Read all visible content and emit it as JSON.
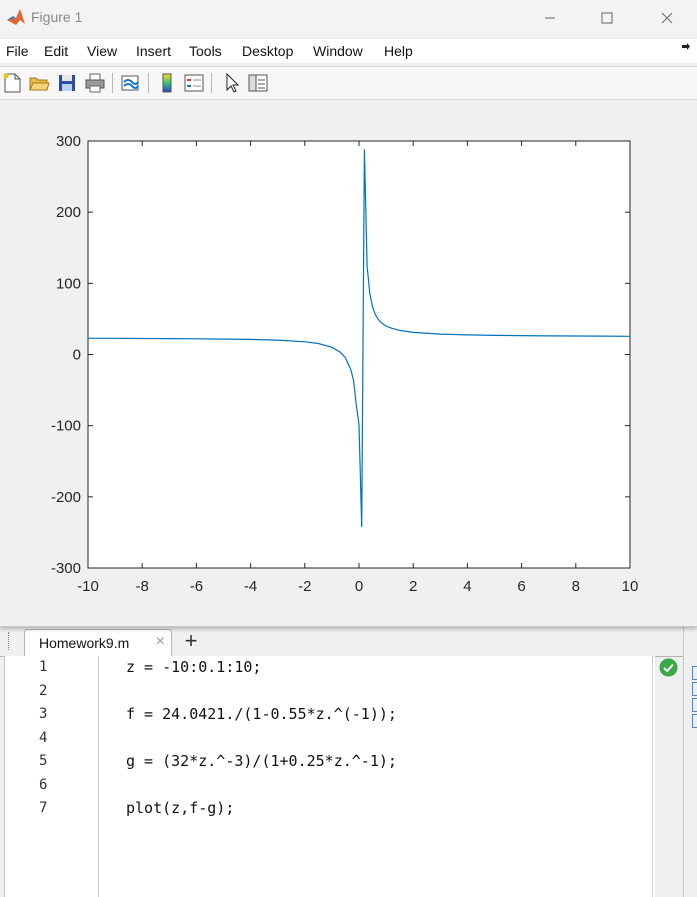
{
  "window": {
    "title": "Figure 1",
    "controls": [
      "minimize-icon",
      "maximize-icon",
      "close-icon"
    ]
  },
  "menubar": {
    "items": [
      "File",
      "Edit",
      "View",
      "Insert",
      "Tools",
      "Desktop",
      "Window",
      "Help"
    ]
  },
  "toolbar": {
    "icons": [
      "new-figure-icon",
      "open-folder-icon",
      "save-icon",
      "print-icon",
      "link-plot-icon",
      "colorbar-icon",
      "legend-icon",
      "edit-plot-arrow-icon",
      "property-inspector-icon"
    ]
  },
  "colors": {
    "line": "#0072bd",
    "accent": "#1a75c8",
    "ok": "#3aa845"
  },
  "chart_data": {
    "type": "line",
    "title": "",
    "xlabel": "",
    "ylabel": "",
    "xlim": [
      -10,
      10
    ],
    "ylim": [
      -300,
      300
    ],
    "xticks": [
      -10,
      -8,
      -6,
      -4,
      -2,
      0,
      2,
      4,
      6,
      8,
      10
    ],
    "yticks": [
      -300,
      -200,
      -100,
      0,
      100,
      200,
      300
    ],
    "grid": false,
    "series": [
      {
        "x": [
          -10,
          -9,
          -8,
          -7,
          -6,
          -5,
          -4,
          -3,
          -2,
          -1.5,
          -1,
          -0.7,
          -0.5,
          -0.3,
          -0.2,
          -0.1,
          0,
          0.1,
          0.2,
          0.3,
          0.4,
          0.5,
          0.6,
          0.7,
          0.8,
          0.9,
          1,
          1.2,
          1.5,
          2,
          3,
          4,
          5,
          6,
          7,
          8,
          9,
          10
        ],
        "y": [
          22.8,
          22.7,
          22.5,
          22.3,
          22.1,
          21.7,
          21.2,
          20.2,
          17.9,
          15.4,
          10.1,
          3.5,
          -4.5,
          -21.5,
          -37.1,
          -71.2,
          -98.4,
          -242.2,
          288.2,
          124.3,
          85.6,
          66.7,
          56.3,
          49.9,
          45.5,
          42.4,
          40.1,
          36.9,
          33.9,
          31.1,
          28.7,
          27.6,
          26.9,
          26.5,
          26.2,
          26.0,
          25.8,
          25.6
        ]
      }
    ]
  },
  "editor": {
    "tab_label": "Homework9.m",
    "close_glyph": "×",
    "add_glyph": "+",
    "line_numbers": [
      "1",
      "2",
      "3",
      "4",
      "5",
      "6",
      "7"
    ],
    "lines": [
      "z = -10:0.1:10;",
      "",
      "f = 24.0421./(1-0.55*z.^(-1));",
      "",
      "g = (32*z.^-3)/(1+0.25*z.^-1);",
      "",
      "plot(z,f-g);"
    ]
  }
}
